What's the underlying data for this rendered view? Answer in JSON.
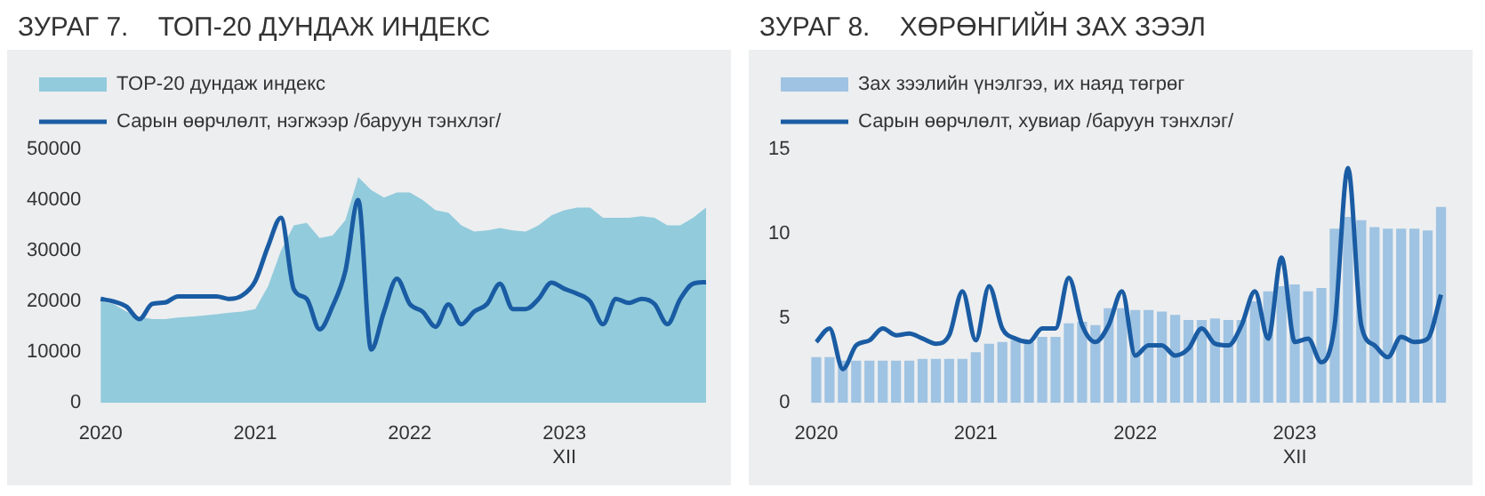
{
  "chart_data": [
    {
      "type": "area",
      "title": "ЗУРАГ 7.    ТОП-20 ДУНДАЖ ИНДЕКС",
      "categories": [
        "2020",
        null,
        null,
        null,
        null,
        null,
        null,
        null,
        null,
        null,
        null,
        null,
        "2021",
        null,
        null,
        null,
        null,
        null,
        null,
        null,
        null,
        null,
        null,
        null,
        "2022",
        null,
        null,
        null,
        null,
        null,
        null,
        null,
        null,
        null,
        null,
        null,
        "2023\nXII",
        null,
        null,
        null,
        null,
        null,
        null,
        null,
        null,
        null,
        null,
        null
      ],
      "series": [
        {
          "name": "TOP-20 дундаж индекс",
          "type": "area",
          "color": "#92cbdc",
          "values": [
            20000,
            19500,
            18000,
            17000,
            16500,
            16500,
            16800,
            17000,
            17200,
            17500,
            17800,
            18000,
            18500,
            23000,
            30000,
            35000,
            35500,
            32500,
            33000,
            36000,
            44500,
            42000,
            40500,
            41500,
            41500,
            40000,
            38000,
            37500,
            35000,
            33800,
            34000,
            34500,
            34000,
            33800,
            35000,
            37000,
            38000,
            38500,
            38500,
            36500,
            36500,
            36500,
            36800,
            36500,
            35000,
            35000,
            36500,
            38500
          ]
        },
        {
          "name": "Сарын өөрчлөлт, нэгжээр /баруун тэнхлэг/",
          "type": "line",
          "color": "#1a5ca3",
          "values": [
            20500,
            20000,
            19000,
            16500,
            19500,
            19800,
            21000,
            21000,
            21000,
            21000,
            20500,
            21200,
            24000,
            30900,
            36500,
            22400,
            20500,
            14500,
            19000,
            26000,
            40000,
            10500,
            18000,
            24500,
            19500,
            18000,
            15000,
            19400,
            15500,
            18000,
            19500,
            23500,
            18500,
            18500,
            20500,
            23700,
            22500,
            21500,
            20000,
            15500,
            20500,
            19700,
            20500,
            19500,
            15500,
            20500,
            23500,
            23800
          ]
        }
      ],
      "ylim": [
        0,
        50000
      ],
      "yticks": [
        0,
        10000,
        20000,
        30000,
        40000,
        50000
      ],
      "grid": false,
      "legend": "top left"
    },
    {
      "type": "bar",
      "title": "ЗУРАГ 8.    ХӨРӨНГИЙН ЗАХ ЗЭЭЛ",
      "categories": [
        "2020",
        null,
        null,
        null,
        null,
        null,
        null,
        null,
        null,
        null,
        null,
        null,
        "2021",
        null,
        null,
        null,
        null,
        null,
        null,
        null,
        null,
        null,
        null,
        null,
        "2022",
        null,
        null,
        null,
        null,
        null,
        null,
        null,
        null,
        null,
        null,
        null,
        "2023\nXII",
        null,
        null,
        null,
        null,
        null,
        null,
        null,
        null,
        null,
        null,
        null
      ],
      "series": [
        {
          "name": "Зах зээлийн үнэлгээ, их наяд төгрөг",
          "type": "bar",
          "color": "#9fc3e2",
          "values": [
            2.7,
            2.7,
            2.5,
            2.5,
            2.5,
            2.5,
            2.5,
            2.5,
            2.6,
            2.6,
            2.6,
            2.6,
            3.0,
            3.5,
            3.6,
            3.7,
            3.6,
            3.9,
            3.9,
            4.7,
            4.8,
            4.6,
            5.6,
            5.6,
            5.5,
            5.5,
            5.4,
            5.2,
            4.9,
            4.9,
            5.0,
            4.9,
            4.9,
            6.0,
            6.6,
            6.9,
            7.0,
            6.6,
            6.8,
            10.3,
            11.0,
            10.8,
            10.4,
            10.3,
            10.3,
            10.3,
            10.2,
            11.6
          ]
        },
        {
          "name": "Сарын өөрчлөлт, хувиар /баруун тэнхлэг/",
          "type": "line",
          "color": "#1a5ca3",
          "values": [
            3.6,
            4.4,
            2.0,
            3.4,
            3.7,
            4.4,
            4.0,
            4.1,
            3.8,
            3.5,
            4.0,
            6.6,
            3.7,
            6.9,
            4.4,
            3.8,
            3.6,
            4.4,
            4.4,
            7.4,
            4.6,
            3.6,
            4.6,
            6.6,
            2.8,
            3.4,
            3.4,
            2.8,
            3.2,
            4.4,
            3.5,
            3.4,
            4.6,
            6.6,
            3.8,
            8.6,
            3.6,
            3.8,
            2.4,
            4.6,
            13.9,
            4.6,
            3.4,
            2.7,
            3.9,
            3.6,
            3.8,
            6.4
          ]
        }
      ],
      "ylim": [
        0,
        15
      ],
      "yticks": [
        0,
        5,
        10,
        15
      ],
      "grid": false,
      "legend": "top left"
    }
  ]
}
